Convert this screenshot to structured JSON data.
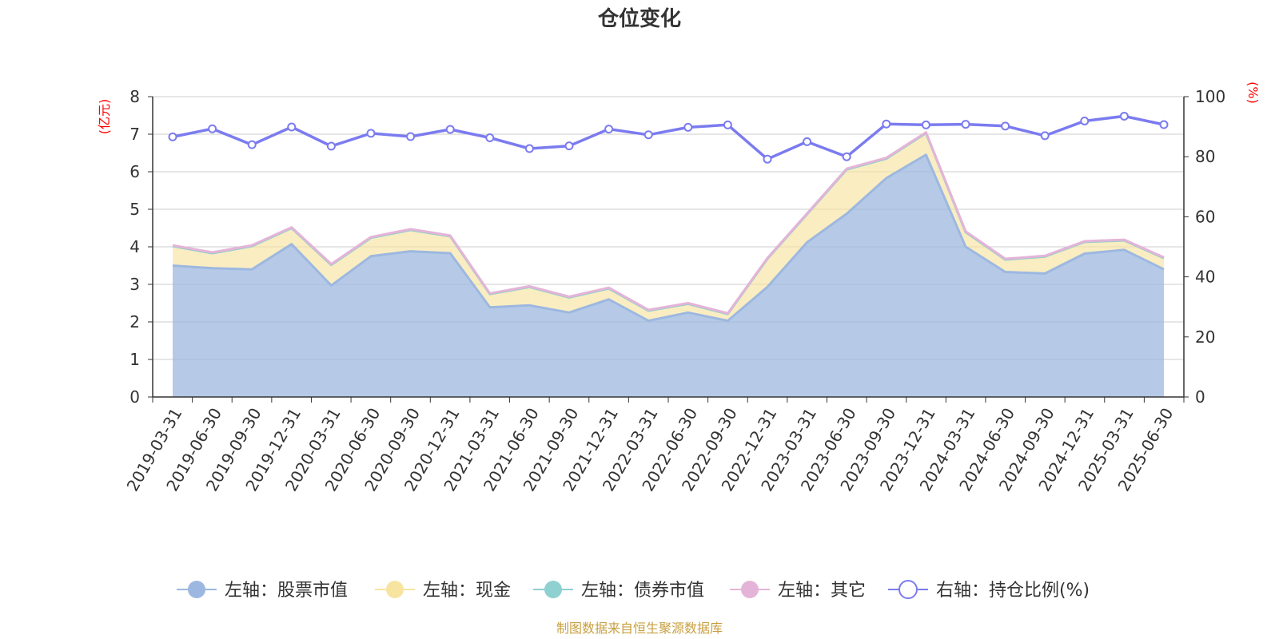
{
  "colors": {
    "stock": "#9db8e0",
    "cash": "#f7e4a0",
    "bond": "#8fd0d0",
    "other": "#e4b4d8",
    "ratio": "#7b7bf0",
    "unit": "#ff0000",
    "source": "#c8a040"
  },
  "chart_data": {
    "type": "area",
    "title": "仓位变化",
    "left_axis_unit": "(亿元)",
    "right_axis_unit": "(%)",
    "ylim_left": [
      0,
      8
    ],
    "ylim_right": [
      0,
      100
    ],
    "yticks_left": [
      "0",
      "1",
      "2",
      "3",
      "4",
      "5",
      "6",
      "7",
      "8"
    ],
    "yticks_right": [
      "0",
      "20",
      "40",
      "60",
      "80",
      "100"
    ],
    "grid": true,
    "legend_position": "bottom",
    "categories": [
      "2019-03-31",
      "2019-06-30",
      "2019-09-30",
      "2019-12-31",
      "2020-03-31",
      "2020-06-30",
      "2020-09-30",
      "2020-12-31",
      "2021-03-31",
      "2021-06-30",
      "2021-09-30",
      "2021-12-31",
      "2022-03-31",
      "2022-06-30",
      "2022-09-30",
      "2022-12-31",
      "2023-03-31",
      "2023-06-30",
      "2023-09-30",
      "2023-12-31",
      "2024-03-31",
      "2024-06-30",
      "2024-09-30",
      "2024-12-31",
      "2025-03-31",
      "2025-06-30"
    ],
    "series": [
      {
        "key": "stock",
        "name": "左轴：股票市值",
        "axis": "left",
        "values": [
          3.5,
          3.43,
          3.4,
          4.07,
          2.97,
          3.75,
          3.88,
          3.83,
          2.39,
          2.44,
          2.25,
          2.6,
          2.03,
          2.25,
          2.03,
          2.93,
          4.12,
          4.88,
          5.83,
          6.45,
          4.0,
          3.33,
          3.29,
          3.82,
          3.92,
          3.4
        ]
      },
      {
        "key": "cash",
        "name": "左轴：现金",
        "axis": "left",
        "values": [
          0.52,
          0.4,
          0.62,
          0.43,
          0.55,
          0.49,
          0.57,
          0.45,
          0.35,
          0.49,
          0.4,
          0.29,
          0.27,
          0.23,
          0.18,
          0.75,
          0.75,
          1.18,
          0.52,
          0.58,
          0.39,
          0.33,
          0.45,
          0.31,
          0.25,
          0.3
        ]
      },
      {
        "key": "bond",
        "name": "左轴：债券市值",
        "axis": "left",
        "values": [
          0,
          0,
          0,
          0,
          0,
          0,
          0,
          0,
          0,
          0,
          0,
          0,
          0,
          0,
          0,
          0,
          0,
          0,
          0,
          0,
          0,
          0,
          0,
          0,
          0,
          0
        ]
      },
      {
        "key": "other",
        "name": "左轴：其它",
        "axis": "left",
        "values": [
          0.02,
          0.02,
          0.02,
          0.02,
          0.02,
          0.02,
          0.02,
          0.02,
          0.02,
          0.02,
          0.02,
          0.02,
          0.02,
          0.02,
          0.02,
          0.02,
          0.02,
          0.02,
          0.02,
          0.02,
          0.02,
          0.02,
          0.02,
          0.02,
          0.02,
          0.02
        ]
      },
      {
        "key": "ratio",
        "name": "右轴：持仓比例(%)",
        "axis": "right",
        "values": [
          86.6,
          89.3,
          84.0,
          89.9,
          83.5,
          87.8,
          86.7,
          89.1,
          86.3,
          82.7,
          83.6,
          89.2,
          87.3,
          89.8,
          90.6,
          79.2,
          85.0,
          80.0,
          90.9,
          90.6,
          90.8,
          90.2,
          87.0,
          91.9,
          93.5,
          90.7
        ]
      }
    ]
  },
  "footer": {
    "source": "制图数据来自恒生聚源数据库"
  }
}
